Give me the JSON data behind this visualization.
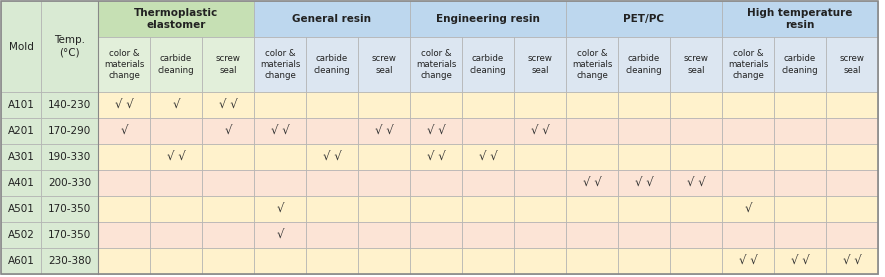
{
  "sub_headers": [
    "color &\nmaterials\nchange",
    "carbide\ncleaning",
    "screw\nseal"
  ],
  "thermo_header": "#c6e0b4",
  "thermo_sub": "#e2efda",
  "other_header": "#bdd7ee",
  "other_sub": "#dce6f1",
  "left_bg": "#d9ead3",
  "row_bg_even": "#fff2cc",
  "row_bg_odd": "#fce4d6",
  "groups": [
    {
      "label": "Thermoplastic\nelastomer",
      "is_thermo": true
    },
    {
      "label": "General resin",
      "is_thermo": false
    },
    {
      "label": "Engineering resin",
      "is_thermo": false
    },
    {
      "label": "PET/PC",
      "is_thermo": false
    },
    {
      "label": "High temperature\nresin",
      "is_thermo": false
    }
  ],
  "rows": [
    {
      "mold": "A101",
      "temp": "140-230",
      "cells": [
        [
          "√ √",
          "√",
          "√ √"
        ],
        [
          "",
          "",
          ""
        ],
        [
          "",
          "",
          ""
        ],
        [
          "",
          "",
          ""
        ],
        [
          "",
          "",
          ""
        ]
      ]
    },
    {
      "mold": "A201",
      "temp": "170-290",
      "cells": [
        [
          "√",
          "",
          "√"
        ],
        [
          "√ √",
          "",
          "√ √"
        ],
        [
          "√ √",
          "",
          "√ √"
        ],
        [
          "",
          "",
          ""
        ],
        [
          "",
          "",
          ""
        ]
      ]
    },
    {
      "mold": "A301",
      "temp": "190-330",
      "cells": [
        [
          "",
          "√ √",
          ""
        ],
        [
          "",
          "√ √",
          ""
        ],
        [
          "√ √",
          "√ √",
          ""
        ],
        [
          "",
          "",
          ""
        ],
        [
          "",
          "",
          ""
        ]
      ]
    },
    {
      "mold": "A401",
      "temp": "200-330",
      "cells": [
        [
          "",
          "",
          ""
        ],
        [
          "",
          "",
          ""
        ],
        [
          "",
          "",
          ""
        ],
        [
          "√ √",
          "√ √",
          "√ √"
        ],
        [
          "",
          "",
          ""
        ]
      ]
    },
    {
      "mold": "A501",
      "temp": "170-350",
      "cells": [
        [
          "",
          "",
          ""
        ],
        [
          "√",
          "",
          ""
        ],
        [
          "",
          "",
          ""
        ],
        [
          "",
          "",
          ""
        ],
        [
          "√",
          "",
          ""
        ]
      ]
    },
    {
      "mold": "A502",
      "temp": "170-350",
      "cells": [
        [
          "",
          "",
          ""
        ],
        [
          "√",
          "",
          ""
        ],
        [
          "",
          "",
          ""
        ],
        [
          "",
          "",
          ""
        ],
        [
          "",
          "",
          ""
        ]
      ]
    },
    {
      "mold": "A601",
      "temp": "230-380",
      "cells": [
        [
          "",
          "",
          ""
        ],
        [
          "",
          "",
          ""
        ],
        [
          "",
          "",
          ""
        ],
        [
          "",
          "",
          ""
        ],
        [
          "√ √",
          "√ √",
          "√ √"
        ]
      ]
    }
  ]
}
